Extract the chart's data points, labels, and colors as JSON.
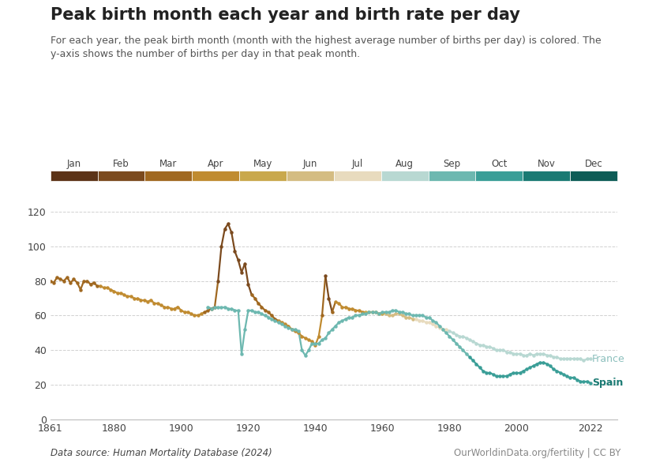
{
  "title": "Peak birth month each year and birth rate per day",
  "subtitle": "For each year, the peak birth month (month with the highest average number of births per day) is colored. The\ny-axis shows the number of births per day in that peak month.",
  "datasource": "Data source: Human Mortality Database (2024)",
  "url": "OurWorldinData.org/fertility | CC BY",
  "months": [
    "Jan",
    "Feb",
    "Mar",
    "Apr",
    "May",
    "Jun",
    "Jul",
    "Aug",
    "Sep",
    "Oct",
    "Nov",
    "Dec"
  ],
  "month_colors": [
    "#5C3317",
    "#7B4A1E",
    "#A06820",
    "#C08B30",
    "#C9A84C",
    "#D4BC82",
    "#E8DBBE",
    "#B8D8D2",
    "#6DB8B0",
    "#3A9E97",
    "#1A7A73",
    "#0D5C56"
  ],
  "xlim": [
    1861,
    2022
  ],
  "ylim": [
    0,
    130
  ],
  "yticks": [
    0,
    20,
    40,
    60,
    80,
    100,
    120
  ],
  "xticks": [
    1861,
    1880,
    1900,
    1920,
    1940,
    1960,
    1980,
    2000,
    2022
  ],
  "background": "#ffffff",
  "owid_box_color": "#1a3a5c",
  "owid_red": "#c0392b",
  "france_label": "France",
  "spain_label": "Spain",
  "france_label_color": "#8BBFBC",
  "spain_label_color": "#1A7A73"
}
